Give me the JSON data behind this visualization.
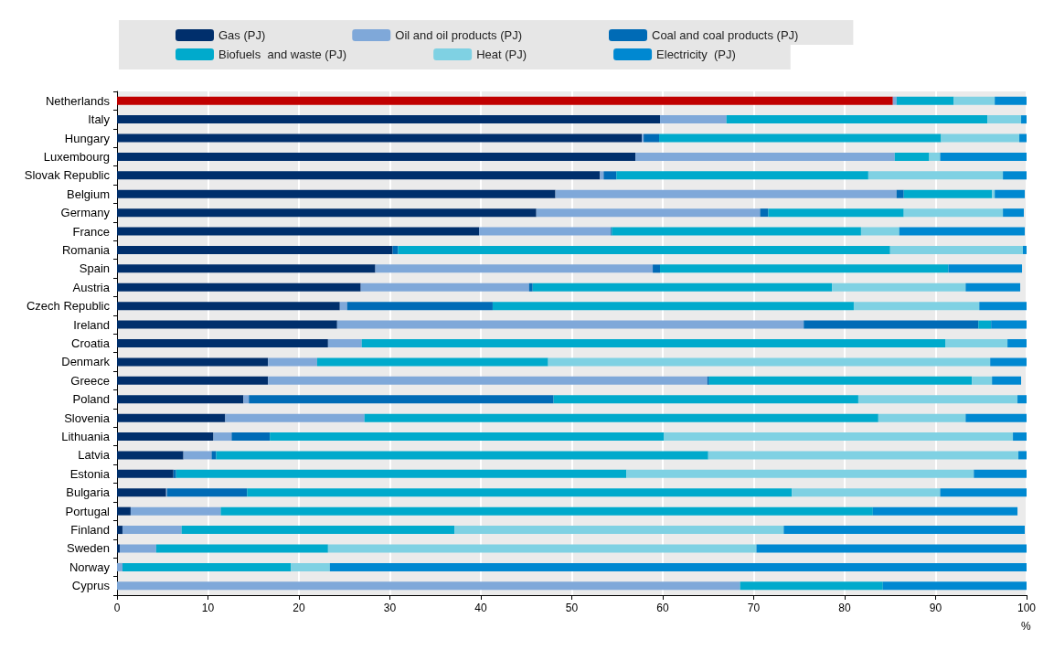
{
  "chart_data": {
    "type": "bar",
    "orientation": "horizontal",
    "stacked": true,
    "xlabel": "%",
    "categories": [
      "Netherlands",
      "Italy",
      "Hungary",
      "Luxembourg",
      "Slovak Republic",
      "Belgium",
      "Germany",
      "France",
      "Romania",
      "Spain",
      "Austria",
      "Czech Republic",
      "Ireland",
      "Croatia",
      "Denmark",
      "Greece",
      "Poland",
      "Slovenia",
      "Lithuania",
      "Latvia",
      "Estonia",
      "Bulgaria",
      "Portugal",
      "Finland",
      "Sweden",
      "Norway",
      "Cyprus"
    ],
    "series": [
      {
        "name": "Gas (PJ)",
        "color": "#002f6c",
        "colors": [
          "#c00000",
          "#002f6c",
          "#002f6c",
          "#002f6c",
          "#002f6c",
          "#002f6c",
          "#002f6c",
          "#002f6c",
          "#002f6c",
          "#002f6c",
          "#002f6c",
          "#002f6c",
          "#002f6c",
          "#002f6c",
          "#002f6c",
          "#002f6c",
          "#002f6c",
          "#002f6c",
          "#002f6c",
          "#002f6c",
          "#002f6c",
          "#002f6c",
          "#002f6c",
          "#002f6c",
          "#002f6c",
          "#002f6c",
          "#002f6c"
        ],
        "values": [
          85.3,
          59.7,
          57.7,
          57.0,
          53.1,
          48.2,
          46.1,
          39.8,
          30.3,
          28.4,
          26.8,
          24.5,
          24.2,
          23.2,
          16.6,
          16.6,
          13.9,
          11.9,
          10.6,
          7.3,
          6.2,
          5.4,
          1.5,
          0.6,
          0.3,
          0,
          0
        ]
      },
      {
        "name": "Oil and oil products (PJ)",
        "color": "#7fa8d9",
        "values": [
          0.4,
          7.3,
          0.2,
          28.5,
          0.4,
          37.5,
          24.6,
          14.5,
          0,
          30.5,
          18.5,
          0.8,
          51.3,
          3.7,
          5.4,
          48.3,
          0.6,
          15.3,
          2.0,
          3.1,
          0,
          0.1,
          9.9,
          6.5,
          4.0,
          0.6,
          68.5
        ]
      },
      {
        "name": "Coal and coal products (PJ)",
        "color": "#006bb6",
        "values": [
          0,
          0,
          1.7,
          0,
          1.4,
          0.8,
          0.9,
          0.1,
          0.6,
          0.8,
          0.4,
          16.0,
          19.2,
          0,
          0,
          0.2,
          33.5,
          0,
          4.2,
          0.5,
          0.3,
          8.8,
          0,
          0,
          0,
          0,
          0
        ]
      },
      {
        "name": "Biofuels  and waste (PJ)",
        "color": "#00aacc",
        "values": [
          6.3,
          28.7,
          31.0,
          3.8,
          27.7,
          9.7,
          14.9,
          27.4,
          54.1,
          31.7,
          32.9,
          39.7,
          1.4,
          64.2,
          25.4,
          28.9,
          33.5,
          56.5,
          43.3,
          54.1,
          49.5,
          59.9,
          71.7,
          30.0,
          18.9,
          18.5,
          15.7
        ]
      },
      {
        "name": "Heat (PJ)",
        "color": "#7fd1e3",
        "values": [
          4.5,
          3.7,
          8.6,
          1.2,
          14.8,
          0.3,
          10.9,
          4.2,
          14.6,
          0,
          14.7,
          13.8,
          0,
          6.8,
          48.6,
          2.2,
          17.5,
          9.6,
          38.4,
          34.1,
          38.2,
          16.3,
          0,
          36.2,
          47.1,
          4.3,
          0
        ]
      },
      {
        "name": "Electricity  (PJ)",
        "color": "#0088d1",
        "values": [
          3.5,
          0.6,
          0.8,
          9.5,
          2.6,
          3.3,
          2.3,
          13.8,
          0.4,
          8.1,
          6.0,
          5.2,
          3.9,
          2.1,
          4.0,
          3.2,
          1.0,
          6.7,
          1.5,
          0.9,
          5.8,
          9.5,
          15.9,
          26.5,
          29.7,
          76.6,
          15.8
        ]
      }
    ],
    "xlim": [
      0,
      100
    ],
    "xticks": [
      0,
      10,
      20,
      30,
      40,
      50,
      60,
      70,
      80,
      90,
      100
    ],
    "grid": "x",
    "legend": "top"
  }
}
